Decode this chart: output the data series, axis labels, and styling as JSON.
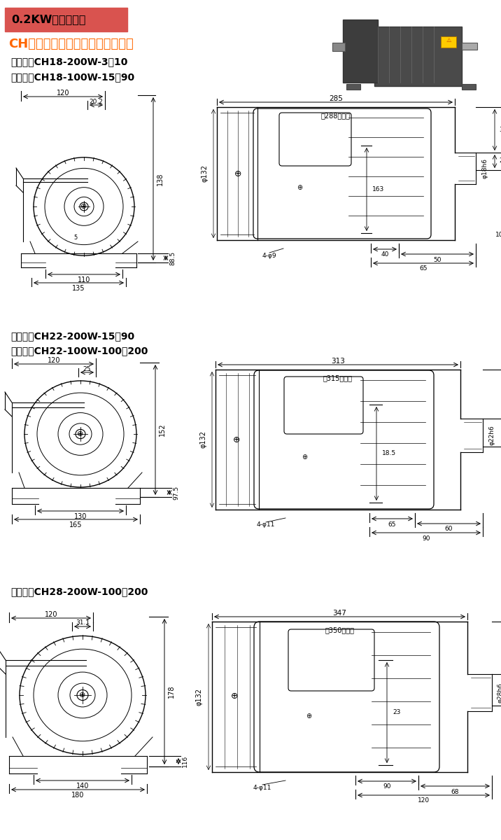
{
  "title_box": "0.2KW电机尺寸图",
  "title_box_bg": "#D9534F",
  "main_title": "CH型卧式三相（刹车）马达减速机",
  "main_title_color": "#FF6600",
  "section1_std": "标准型：CH18-200W-3～10",
  "section1_compact": "缩框型：CH18-100W-15～90",
  "section2_std": "标准型：CH22-200W-15～90",
  "section2_compact": "缩框型：CH22-100W-100～200",
  "section3_std": "标准型：CH28-200W-100～200",
  "bg_color": "#FFFFFF",
  "line_color": "#000000"
}
